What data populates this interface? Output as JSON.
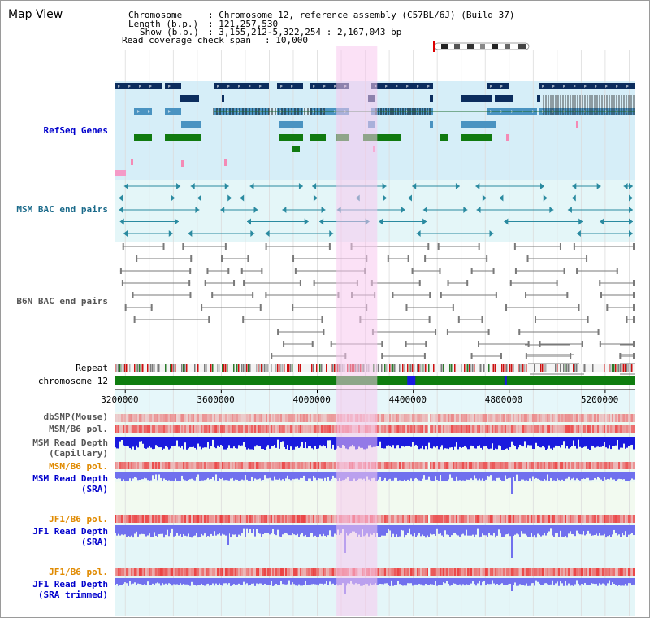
{
  "title": "Map View",
  "info": {
    "chromosome_label": "Chromosome",
    "chromosome_value": ": Chromosome 12, reference assembly (C57BL/6J) (Build 37)",
    "length_label": "Length (b.p.)",
    "length_value": ": 121,257,530",
    "show_label": "Show (b.p.)",
    "show_value": ": 3,155,212-5,322,254 : 2,167,043 bp",
    "coverage_label": "Read coverage check span",
    "coverage_value": ": 10,000"
  },
  "tracks": {
    "refseq": "RefSeq Genes",
    "msm_bac": "MSM BAC end pairs",
    "b6n_bac": "B6N BAC end pairs",
    "repeat": "Repeat",
    "chromosome": "chromosome 12",
    "dbsnp": "dbSNP(Mouse)",
    "msm_b6_pol_1": "MSM/B6 pol.",
    "msm_depth_cap_1": "MSM Read Depth",
    "msm_depth_cap_2": "(Capillary)",
    "msm_b6_pol_2": "MSM/B6 pol.",
    "msm_depth_sra_1": "MSM Read Depth",
    "msm_depth_sra_2": "(SRA)",
    "jf1_b6_pol_1": "JF1/B6 pol.",
    "jf1_depth_sra_1": "JF1 Read Depth",
    "jf1_depth_sra_2": "(SRA)",
    "jf1_b6_pol_2": "JF1/B6 pol.",
    "jf1_depth_trim_1": "JF1 Read Depth",
    "jf1_depth_trim_2": "(SRA trimmed)"
  },
  "axis": {
    "ticks": [
      "3200000",
      "3600000",
      "4000000",
      "4400000",
      "4800000",
      "5200000"
    ],
    "tick_values": [
      3200000,
      3600000,
      4000000,
      4400000,
      4800000,
      5200000
    ],
    "view_start": 3155212,
    "view_end": 5322254
  },
  "highlight": {
    "start": 4080000,
    "end": 4250000
  },
  "colors": {
    "refseq_bg": "#d6eef8",
    "bac_bg": "#e4f6f8",
    "highlight": "#f7c8ee",
    "dark_gene": "#0c2d5e",
    "mid_gene": "#4a93c1",
    "green_gene": "#107a10",
    "msm_bac": "#2a8aa0",
    "b6n_bac": "#7a7a7a",
    "chromosome": "#0f7d0f",
    "label_blue": "#0000cc",
    "label_orange": "#e08a00",
    "label_teal": "#1a6a8a",
    "label_gray": "#555555",
    "depth_blue": "#1a1add",
    "depth_light": "#7070ee"
  }
}
